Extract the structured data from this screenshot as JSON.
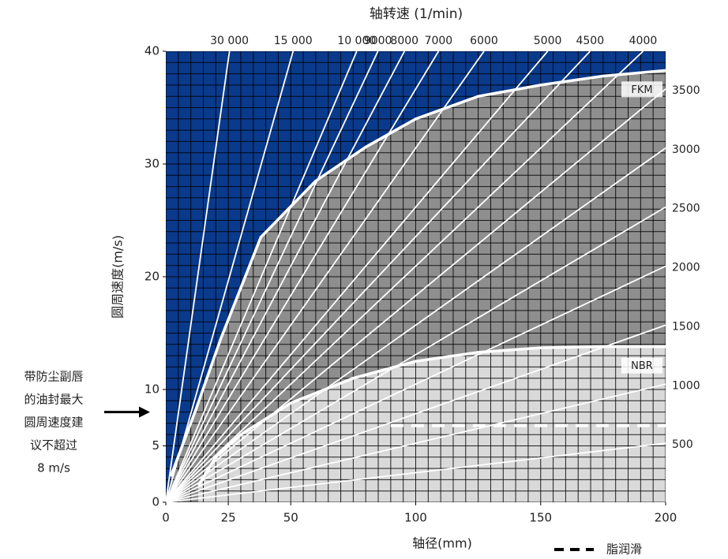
{
  "chart_data": {
    "type": "line",
    "title": "轴转速 (1/min)",
    "x_label": "轴径(mm)",
    "y_label": "圆周速度(m/s)",
    "xlim": [
      0,
      200
    ],
    "ylim": [
      0,
      40
    ],
    "xticks": [
      0,
      25,
      50,
      100,
      150,
      200
    ],
    "yticks": [
      0,
      5,
      10,
      20,
      30,
      40
    ],
    "grid": true,
    "grid_step": [
      5,
      1
    ],
    "background": "#0a3a8c",
    "rpm_color": "#ffffff",
    "rpm_lines": [
      {
        "value": 30000,
        "label": "30 000"
      },
      {
        "value": 15000,
        "label": "15 000"
      },
      {
        "value": 10000,
        "label": "10 000"
      },
      9000,
      8000,
      7000,
      6000,
      5000,
      4500,
      4000,
      3500,
      3000,
      2500,
      2000,
      1500,
      1000,
      500
    ],
    "series": [
      {
        "name": "FKM",
        "color": "#8e8e8e",
        "x": [
          2,
          12,
          22,
          38,
          60,
          80,
          100,
          125,
          150,
          175,
          200
        ],
        "values": [
          2.3,
          8.2,
          14.5,
          23.5,
          28.5,
          31.5,
          34,
          36,
          37,
          37.8,
          38.3
        ]
      },
      {
        "name": "NBR",
        "color": "#d9d9d9",
        "x": [
          13,
          20,
          30,
          50,
          75,
          100,
          125,
          150,
          175,
          200
        ],
        "values": [
          1.5,
          4,
          6,
          8.8,
          11,
          12.5,
          13.3,
          13.7,
          13.8,
          13.8
        ]
      },
      {
        "name": "脂润滑",
        "color": "#ffffff",
        "dashed": true,
        "x": [
          90,
          200
        ],
        "values": [
          6.8,
          6.8
        ]
      }
    ],
    "annotation": {
      "lines": [
        "带防尘副唇",
        "的油封最大",
        "圆周速度建",
        "议不超过",
        "8 m/s"
      ],
      "y": 8
    }
  }
}
